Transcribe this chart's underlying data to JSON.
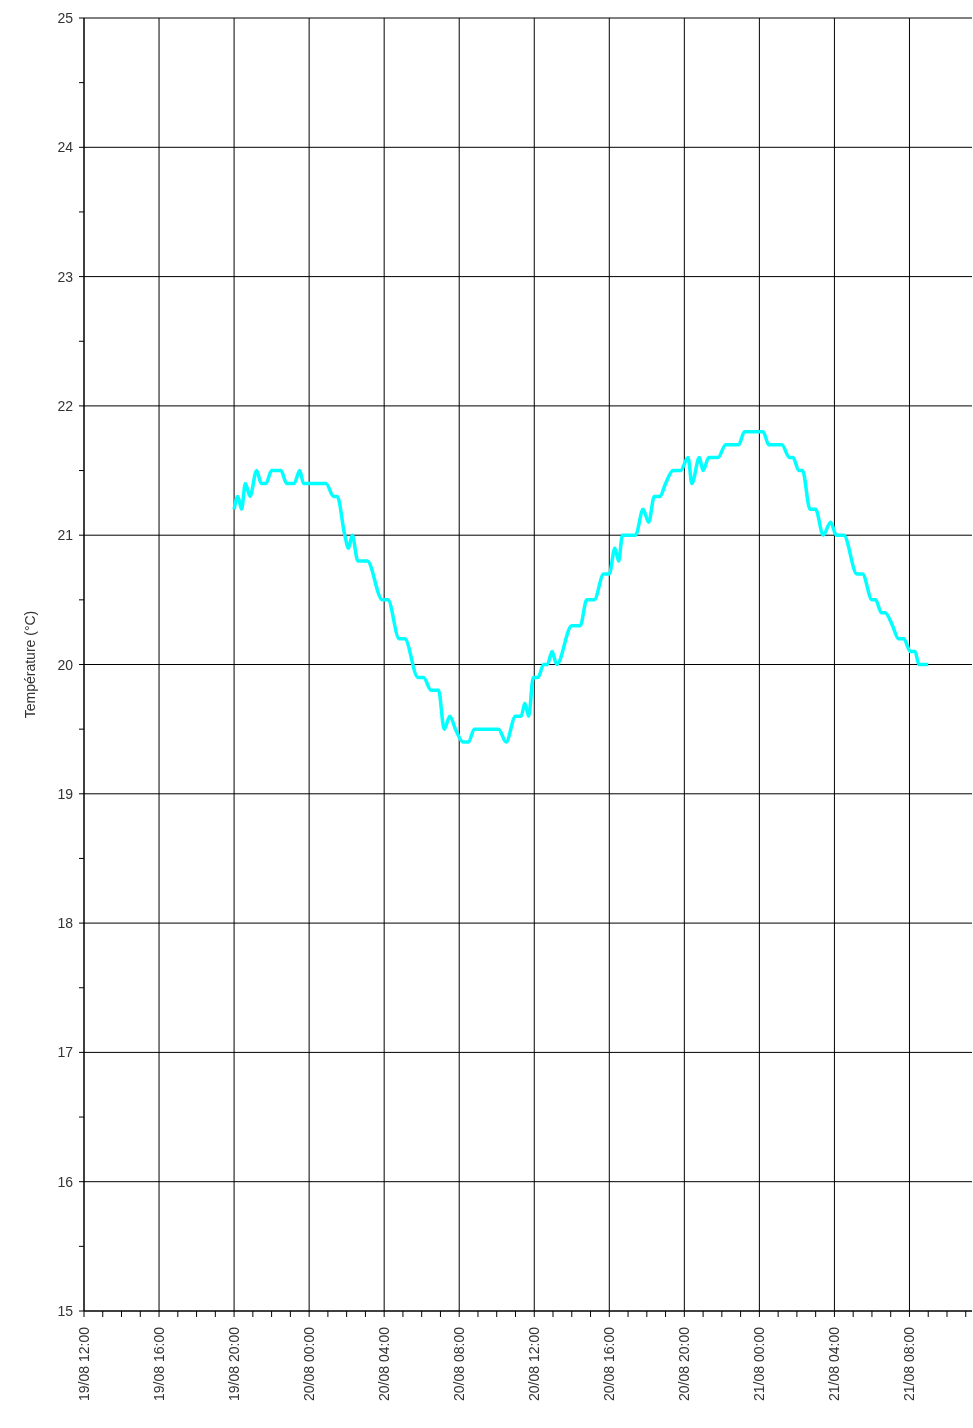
{
  "chart_data": {
    "type": "line",
    "ylabel": "Température (°C)",
    "x": [
      "--08-19T20:00",
      "--08-19T20:12",
      "--08-19T20:24",
      "--08-19T20:36",
      "--08-19T20:51",
      "--08-19T21:12",
      "--08-19T21:27",
      "--08-19T21:42",
      "--08-19T22:00",
      "--08-19T22:30",
      "--08-19T22:48",
      "--08-19T23:12",
      "--08-19T23:30",
      "--08-19T23:42",
      "--08-20T00:54",
      "--08-20T01:18",
      "--08-20T01:30",
      "--08-20T01:54",
      "--08-20T02:06",
      "--08-20T02:18",
      "--08-20T02:36",
      "--08-20T03:06",
      "--08-20T03:54",
      "--08-20T04:12",
      "--08-20T04:48",
      "--08-20T05:06",
      "--08-20T05:48",
      "--08-20T06:06",
      "--08-20T06:30",
      "--08-20T06:54",
      "--08-20T07:12",
      "--08-20T07:30",
      "--08-20T07:48",
      "--08-20T08:12",
      "--08-20T08:30",
      "--08-20T08:48",
      "--08-20T10:06",
      "--08-20T10:30",
      "--08-20T11:00",
      "--08-20T11:18",
      "--08-20T11:30",
      "--08-20T11:42",
      "--08-20T11:57",
      "--08-20T12:12",
      "--08-20T12:30",
      "--08-20T12:42",
      "--08-20T12:57",
      "--08-20T13:12",
      "--08-20T14:00",
      "--08-20T14:27",
      "--08-20T14:48",
      "--08-20T15:12",
      "--08-20T15:42",
      "--08-20T16:00",
      "--08-20T16:18",
      "--08-20T16:30",
      "--08-20T16:42",
      "--08-20T17:24",
      "--08-20T17:48",
      "--08-20T18:06",
      "--08-20T18:24",
      "--08-20T18:42",
      "--08-20T19:00",
      "--08-20T19:24",
      "--08-20T19:48",
      "--08-20T20:12",
      "--08-20T20:24",
      "--08-20T20:48",
      "--08-20T21:00",
      "--08-20T21:18",
      "--08-20T21:48",
      "--08-20T22:12",
      "--08-20T22:54",
      "--08-20T23:12",
      "--08-21T00:12",
      "--08-21T00:30",
      "--08-21T01:12",
      "--08-21T01:36",
      "--08-21T01:48",
      "--08-21T02:06",
      "--08-21T02:18",
      "--08-21T02:42",
      "--08-21T03:00",
      "--08-21T03:24",
      "--08-21T03:48",
      "--08-21T04:06",
      "--08-21T04:30",
      "--08-21T05:12",
      "--08-21T05:30",
      "--08-21T06:00",
      "--08-21T06:12",
      "--08-21T06:30",
      "--08-21T06:42",
      "--08-21T07:06",
      "--08-21T07:24",
      "--08-21T07:42",
      "--08-21T08:03",
      "--08-21T08:18",
      "--08-21T08:30",
      "--08-21T09:00"
    ],
    "series": [
      {
        "color": "#00ffff",
        "values": [
          21.2,
          21.3,
          21.2,
          21.4,
          21.3,
          21.5,
          21.4,
          21.4,
          21.5,
          21.5,
          21.4,
          21.4,
          21.5,
          21.4,
          21.4,
          21.3,
          21.3,
          21.0,
          20.9,
          21.0,
          20.8,
          20.8,
          20.5,
          20.5,
          20.2,
          20.2,
          19.9,
          19.9,
          19.8,
          19.8,
          19.5,
          19.6,
          19.5,
          19.4,
          19.4,
          19.5,
          19.5,
          19.4,
          19.6,
          19.6,
          19.7,
          19.6,
          19.9,
          19.9,
          20.0,
          20.0,
          20.1,
          20.0,
          20.3,
          20.3,
          20.5,
          20.5,
          20.7,
          20.7,
          20.9,
          20.8,
          21.0,
          21.0,
          21.2,
          21.1,
          21.3,
          21.3,
          21.4,
          21.5,
          21.5,
          21.6,
          21.4,
          21.6,
          21.5,
          21.6,
          21.6,
          21.7,
          21.7,
          21.8,
          21.8,
          21.7,
          21.7,
          21.6,
          21.6,
          21.5,
          21.5,
          21.2,
          21.2,
          21.0,
          21.1,
          21.0,
          21.0,
          20.7,
          20.7,
          20.5,
          20.5,
          20.4,
          20.4,
          20.3,
          20.2,
          20.2,
          20.1,
          20.1,
          20.0,
          20.0
        ]
      }
    ],
    "xlim": [
      "--08-19T12:00",
      "--08-21T11:20"
    ],
    "xticks": [
      {
        "value": "--08-19T12:00",
        "label": "19/08 12:00"
      },
      {
        "value": "--08-19T13:00",
        "label": null
      },
      {
        "value": "--08-19T14:00",
        "label": null
      },
      {
        "value": "--08-19T15:00",
        "label": null
      },
      {
        "value": "--08-19T16:00",
        "label": "19/08 16:00"
      },
      {
        "value": "--08-19T17:00",
        "label": null
      },
      {
        "value": "--08-19T18:00",
        "label": null
      },
      {
        "value": "--08-19T19:00",
        "label": null
      },
      {
        "value": "--08-19T20:00",
        "label": "19/08 20:00"
      },
      {
        "value": "--08-19T21:00",
        "label": null
      },
      {
        "value": "--08-19T22:00",
        "label": null
      },
      {
        "value": "--08-19T23:00",
        "label": null
      },
      {
        "value": "--08-20T00:00",
        "label": "20/08 00:00"
      },
      {
        "value": "--08-20T01:00",
        "label": null
      },
      {
        "value": "--08-20T02:00",
        "label": null
      },
      {
        "value": "--08-20T03:00",
        "label": null
      },
      {
        "value": "--08-20T04:00",
        "label": "20/08 04:00"
      },
      {
        "value": "--08-20T05:00",
        "label": null
      },
      {
        "value": "--08-20T06:00",
        "label": null
      },
      {
        "value": "--08-20T07:00",
        "label": null
      },
      {
        "value": "--08-20T08:00",
        "label": "20/08 08:00"
      },
      {
        "value": "--08-20T09:00",
        "label": null
      },
      {
        "value": "--08-20T10:00",
        "label": null
      },
      {
        "value": "--08-20T11:00",
        "label": null
      },
      {
        "value": "--08-20T12:00",
        "label": "20/08 12:00"
      },
      {
        "value": "--08-20T13:00",
        "label": null
      },
      {
        "value": "--08-20T14:00",
        "label": null
      },
      {
        "value": "--08-20T15:00",
        "label": null
      },
      {
        "value": "--08-20T16:00",
        "label": "20/08 16:00"
      },
      {
        "value": "--08-20T17:00",
        "label": null
      },
      {
        "value": "--08-20T18:00",
        "label": null
      },
      {
        "value": "--08-20T19:00",
        "label": null
      },
      {
        "value": "--08-20T20:00",
        "label": "20/08 20:00"
      },
      {
        "value": "--08-20T21:00",
        "label": null
      },
      {
        "value": "--08-20T22:00",
        "label": null
      },
      {
        "value": "--08-20T23:00",
        "label": null
      },
      {
        "value": "--08-21T00:00",
        "label": "21/08 00:00"
      },
      {
        "value": "--08-21T01:00",
        "label": null
      },
      {
        "value": "--08-21T02:00",
        "label": null
      },
      {
        "value": "--08-21T03:00",
        "label": null
      },
      {
        "value": "--08-21T04:00",
        "label": "21/08 04:00"
      },
      {
        "value": "--08-21T05:00",
        "label": null
      },
      {
        "value": "--08-21T06:00",
        "label": null
      },
      {
        "value": "--08-21T07:00",
        "label": null
      },
      {
        "value": "--08-21T08:00",
        "label": "21/08 08:00"
      },
      {
        "value": "--08-21T09:00",
        "label": null
      },
      {
        "value": "--08-21T10:00",
        "label": null
      },
      {
        "value": "--08-21T11:00",
        "label": null
      }
    ],
    "ylim": [
      15,
      25
    ],
    "yticks": [
      15,
      {
        "value": 15.5,
        "label": null
      },
      16,
      {
        "value": 16.5,
        "label": null
      },
      17,
      {
        "value": 17.5,
        "label": null
      },
      18,
      {
        "value": 18.5,
        "label": null
      },
      19,
      {
        "value": 19.5,
        "label": null
      },
      20,
      {
        "value": 20.5,
        "label": null
      },
      21,
      {
        "value": 21.5,
        "label": null
      },
      22,
      {
        "value": 22.5,
        "label": null
      },
      23,
      {
        "value": 23.5,
        "label": null
      },
      24,
      {
        "value": 24.5,
        "label": null
      },
      25
    ],
    "grid": true,
    "marker": "none",
    "line_style": "solid",
    "legend": false
  }
}
